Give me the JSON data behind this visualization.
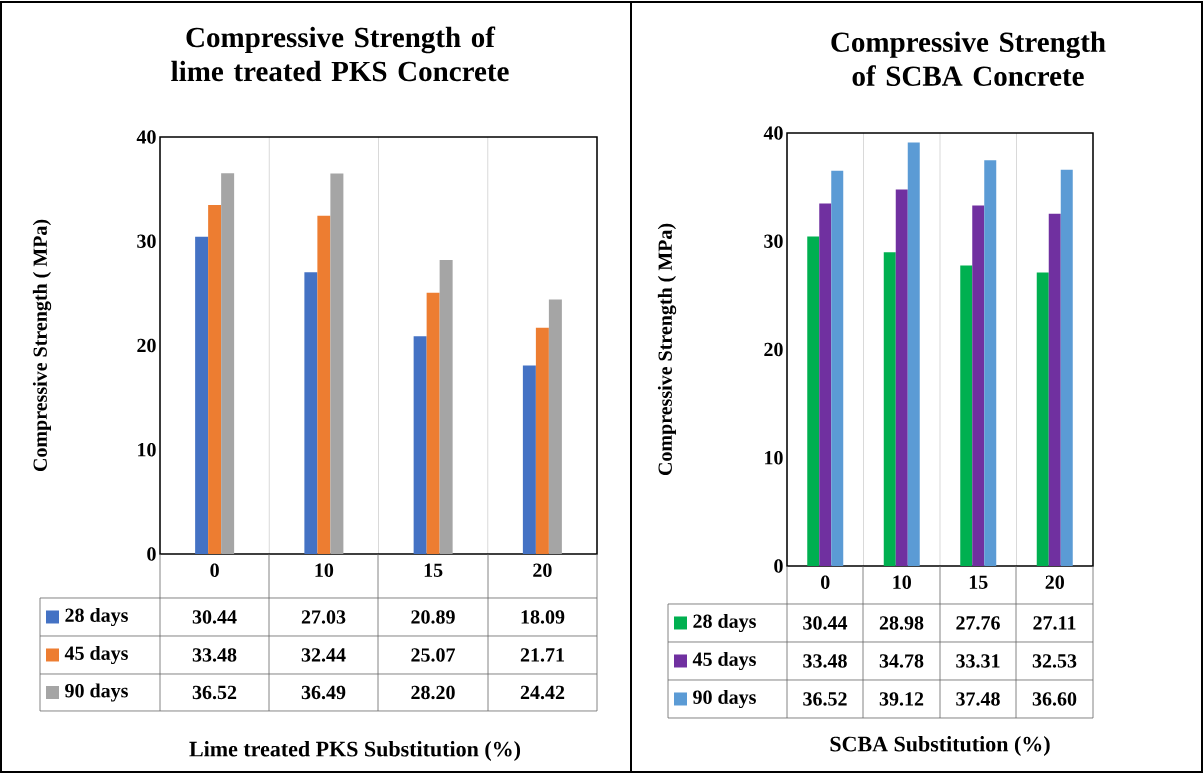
{
  "chart_data": [
    {
      "type": "bar",
      "title": "Compressive Strength of lime treated PKS Concrete",
      "xlabel": "Lime treated PKS Substitution (%)",
      "ylabel": "Compressive Strength ( MPa)",
      "categories": [
        "0",
        "10",
        "15",
        "20"
      ],
      "ylim": [
        0,
        40
      ],
      "yticks": [
        0,
        10,
        20,
        30,
        40
      ],
      "grid": "x",
      "legend": "bottom",
      "series": [
        {
          "name": "28 days",
          "color": "#4472c4",
          "values": [
            30.44,
            27.03,
            20.89,
            18.09
          ],
          "value_labels": [
            "30.44",
            "27.03",
            "20.89",
            "18.09"
          ]
        },
        {
          "name": "45 days",
          "color": "#ed7d31",
          "values": [
            33.48,
            32.44,
            25.07,
            21.71
          ],
          "value_labels": [
            "33.48",
            "32.44",
            "25.07",
            "21.71"
          ]
        },
        {
          "name": "90 days",
          "color": "#a5a5a5",
          "values": [
            36.52,
            36.49,
            28.2,
            24.42
          ],
          "value_labels": [
            "36.52",
            "36.49",
            "28.20",
            "24.42"
          ]
        }
      ]
    },
    {
      "type": "bar",
      "title": "Compressive Strength of SCBA Concrete",
      "xlabel": "SCBA Substitution (%)",
      "ylabel": "Compressive Strength ( MPa)",
      "categories": [
        "0",
        "10",
        "15",
        "20"
      ],
      "ylim": [
        0,
        40
      ],
      "yticks": [
        0,
        10,
        20,
        30,
        40
      ],
      "grid": "x",
      "legend": "bottom",
      "series": [
        {
          "name": "28 days",
          "color": "#00b050",
          "values": [
            30.44,
            28.98,
            27.76,
            27.11
          ],
          "value_labels": [
            "30.44",
            "28.98",
            "27.76",
            "27.11"
          ]
        },
        {
          "name": "45 days",
          "color": "#7030a0",
          "values": [
            33.48,
            34.78,
            33.31,
            32.53
          ],
          "value_labels": [
            "33.48",
            "34.78",
            "33.31",
            "32.53"
          ]
        },
        {
          "name": "90 days",
          "color": "#5b9bd5",
          "values": [
            36.52,
            39.12,
            37.48,
            36.6
          ],
          "value_labels": [
            "36.52",
            "39.12",
            "37.48",
            "36.60"
          ]
        }
      ]
    }
  ]
}
